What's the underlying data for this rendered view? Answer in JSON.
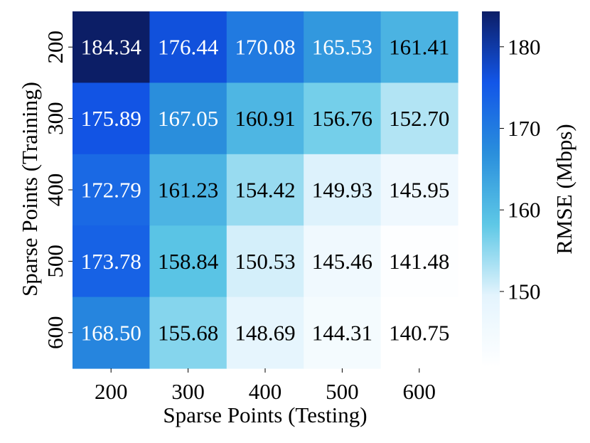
{
  "chart_data": {
    "type": "heatmap",
    "title": "",
    "xlabel": "Sparse Points (Testing)",
    "ylabel": "Sparse Points (Training)",
    "x_categories": [
      "200",
      "300",
      "400",
      "500",
      "600"
    ],
    "y_categories": [
      "200",
      "300",
      "400",
      "500",
      "600"
    ],
    "values": [
      [
        184.34,
        176.44,
        170.08,
        165.53,
        161.41
      ],
      [
        175.89,
        167.05,
        160.91,
        156.76,
        152.7
      ],
      [
        172.79,
        161.23,
        154.42,
        149.93,
        145.95
      ],
      [
        173.78,
        158.84,
        150.53,
        145.46,
        141.48
      ],
      [
        168.5,
        155.68,
        148.69,
        144.31,
        140.75
      ]
    ],
    "value_format": "0.00",
    "colorbar": {
      "label": "RMSE (Mbps)",
      "range": [
        140.75,
        184.34
      ],
      "ticks": [
        150,
        160,
        170,
        180
      ],
      "colormap": "white-to-dark-blue",
      "colors": [
        "#ffffff",
        "#e4f4fd",
        "#5ec8e6",
        "#2a8fdc",
        "#1256e8",
        "#0c1e66"
      ]
    },
    "annotation_text_colors": {
      "on_dark": "#ffffff",
      "on_light": "#000000"
    }
  }
}
